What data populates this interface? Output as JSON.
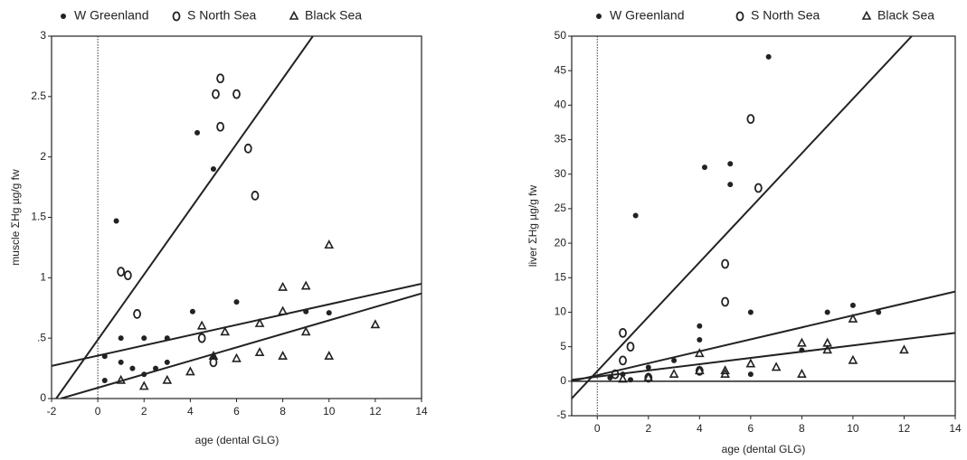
{
  "chart_data": [
    {
      "type": "scatter",
      "xlabel": "age (dental GLG)",
      "ylabel": "muscle ΣHg µg/g fw",
      "xlim": [
        -2,
        14
      ],
      "xticks": [
        -2,
        0,
        2,
        4,
        6,
        8,
        10,
        12,
        14
      ],
      "ylim": [
        0,
        3
      ],
      "yticks": [
        0,
        {
          "value": 0.5,
          "label": ".5"
        },
        1,
        1.5,
        2,
        2.5,
        3
      ],
      "vline": 0,
      "series": [
        {
          "name": "W Greenland",
          "marker": "filled-circle",
          "color": "#222",
          "x": [
            0.8,
            4.3,
            5,
            4.1,
            6,
            9,
            10,
            2,
            3,
            1,
            0.3,
            0.3,
            1.5,
            2,
            3,
            5,
            1,
            2.5
          ],
          "values": [
            1.47,
            2.2,
            1.9,
            0.72,
            0.8,
            0.72,
            0.71,
            0.5,
            0.5,
            0.3,
            0.35,
            0.15,
            0.25,
            0.2,
            0.3,
            0.35,
            0.5,
            0.25
          ]
        },
        {
          "name": "S North Sea",
          "marker": "open-circle",
          "color": "#222",
          "x": [
            5.3,
            5.1,
            6,
            5.3,
            6.5,
            6.8,
            1,
            1.3,
            1.7,
            4.5,
            5
          ],
          "values": [
            2.65,
            2.52,
            2.52,
            2.25,
            2.07,
            1.68,
            1.05,
            1.02,
            0.7,
            0.5,
            0.3
          ]
        },
        {
          "name": "Black Sea",
          "marker": "triangle",
          "color": "#222",
          "x": [
            10,
            8,
            9,
            12,
            7,
            8,
            9,
            10,
            8,
            7,
            6,
            5,
            4,
            3,
            2,
            1,
            5.5,
            4.5
          ],
          "values": [
            1.27,
            0.92,
            0.93,
            0.61,
            0.62,
            0.72,
            0.55,
            0.35,
            0.35,
            0.38,
            0.33,
            0.35,
            0.22,
            0.15,
            0.1,
            0.15,
            0.55,
            0.6
          ]
        }
      ],
      "fit_lines": [
        {
          "x": [
            -1.8,
            9.3
          ],
          "values": [
            0,
            3
          ]
        },
        {
          "x": [
            -2,
            14
          ],
          "values": [
            0.27,
            0.95
          ]
        },
        {
          "x": [
            -1.6,
            14
          ],
          "values": [
            0,
            0.87
          ]
        }
      ]
    },
    {
      "type": "scatter",
      "xlabel": "age (dental GLG)",
      "ylabel": "liver ΣHg µg/g fw",
      "xlim": [
        -1,
        14
      ],
      "xticks": [
        0,
        2,
        4,
        6,
        8,
        10,
        12,
        14
      ],
      "ylim": [
        -5,
        50
      ],
      "yticks": [
        -5,
        0,
        5,
        10,
        15,
        20,
        25,
        30,
        35,
        40,
        45,
        50
      ],
      "vline": 0,
      "hline": 0,
      "series": [
        {
          "name": "W Greenland",
          "marker": "filled-circle",
          "color": "#222",
          "x": [
            6.7,
            4.2,
            5.2,
            5.2,
            1.5,
            6,
            9,
            10,
            11,
            4,
            3,
            2,
            1,
            0.5,
            1.3,
            4,
            8,
            6
          ],
          "values": [
            47,
            31,
            31.5,
            28.5,
            24,
            10,
            10,
            11,
            10,
            8,
            3,
            2,
            1,
            0.5,
            0.2,
            6,
            4.5,
            1
          ]
        },
        {
          "name": "S North Sea",
          "marker": "open-circle",
          "color": "#222",
          "x": [
            6,
            6.3,
            5,
            5,
            1,
            1.3,
            1,
            0.7,
            4,
            2
          ],
          "values": [
            38,
            28,
            17,
            11.5,
            7,
            5,
            3,
            1,
            1.5,
            0.5
          ]
        },
        {
          "name": "Black Sea",
          "marker": "triangle",
          "color": "#222",
          "x": [
            12,
            10,
            9,
            8,
            8,
            7,
            6,
            5,
            4,
            4,
            3,
            5,
            2,
            1,
            9,
            10
          ],
          "values": [
            4.5,
            3,
            5.5,
            5.5,
            1,
            2,
            2.5,
            1.5,
            4,
            1.5,
            1,
            1,
            0.5,
            0.3,
            4.5,
            9
          ]
        }
      ],
      "fit_lines": [
        {
          "x": [
            -1,
            12.3
          ],
          "values": [
            -2.5,
            50
          ]
        },
        {
          "x": [
            -1,
            14
          ],
          "values": [
            0,
            13
          ]
        },
        {
          "x": [
            -1,
            14
          ],
          "values": [
            0.2,
            7
          ]
        }
      ]
    }
  ]
}
